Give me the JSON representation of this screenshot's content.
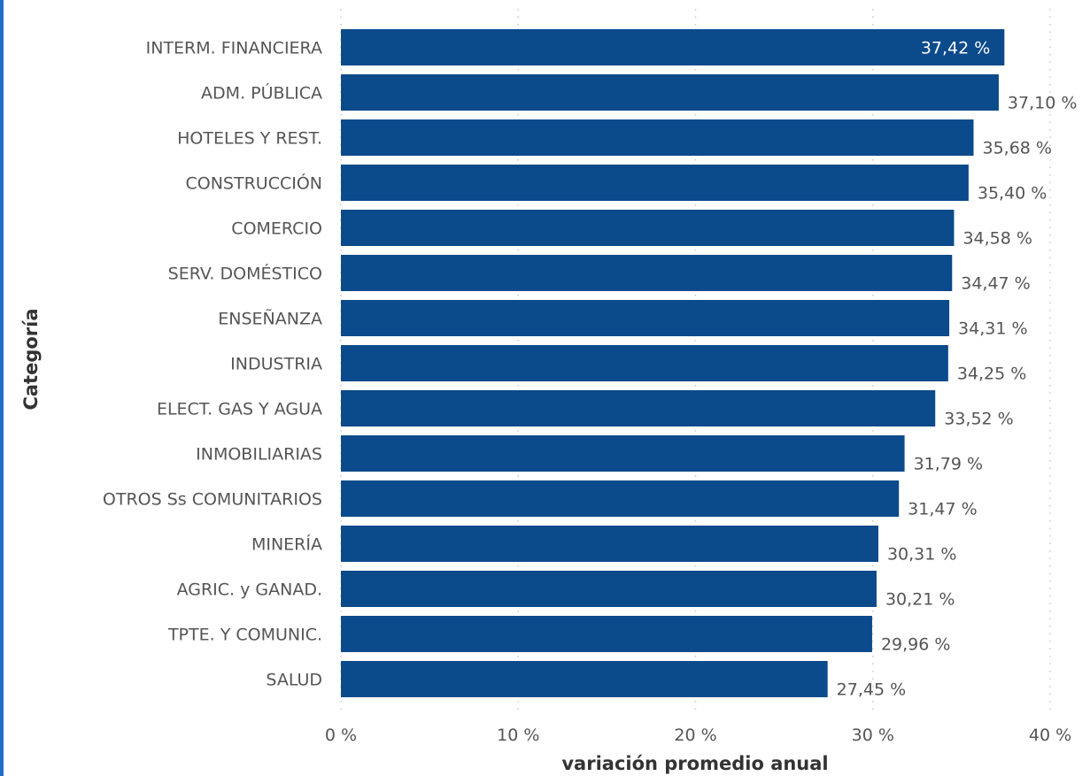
{
  "chart_data": {
    "type": "bar",
    "orientation": "horizontal",
    "title": "",
    "xlabel": "variación promedio anual",
    "ylabel": "Categoría",
    "xlim": [
      0,
      40
    ],
    "grid": true,
    "bar_color": "#0b4a8b",
    "x_ticks": [
      "0 %",
      "10 %",
      "20 %",
      "30 %",
      "40 %"
    ],
    "categories": [
      "INTERM. FINANCIERA",
      "ADM. PÚBLICA",
      "HOTELES Y REST.",
      "CONSTRUCCIÓN",
      "COMERCIO",
      "SERV. DOMÉSTICO",
      "ENSEÑANZA",
      "INDUSTRIA",
      "ELECT. GAS Y AGUA",
      "INMOBILIARIAS",
      "OTROS Ss COMUNITARIOS",
      "MINERÍA",
      "AGRIC. y GANAD.",
      "TPTE. Y COMUNIC.",
      "SALUD"
    ],
    "values": [
      37.42,
      37.1,
      35.68,
      35.4,
      34.58,
      34.47,
      34.31,
      34.25,
      33.52,
      31.79,
      31.47,
      30.31,
      30.21,
      29.96,
      27.45
    ],
    "value_labels": [
      "37,42 %",
      "37,10 %",
      "35,68 %",
      "35,40 %",
      "34,58 %",
      "34,47 %",
      "34,31 %",
      "34,25 %",
      "33,52 %",
      "31,79 %",
      "31,47 %",
      "30,31 %",
      "30,21 %",
      "29,96 %",
      "27,45 %"
    ]
  }
}
